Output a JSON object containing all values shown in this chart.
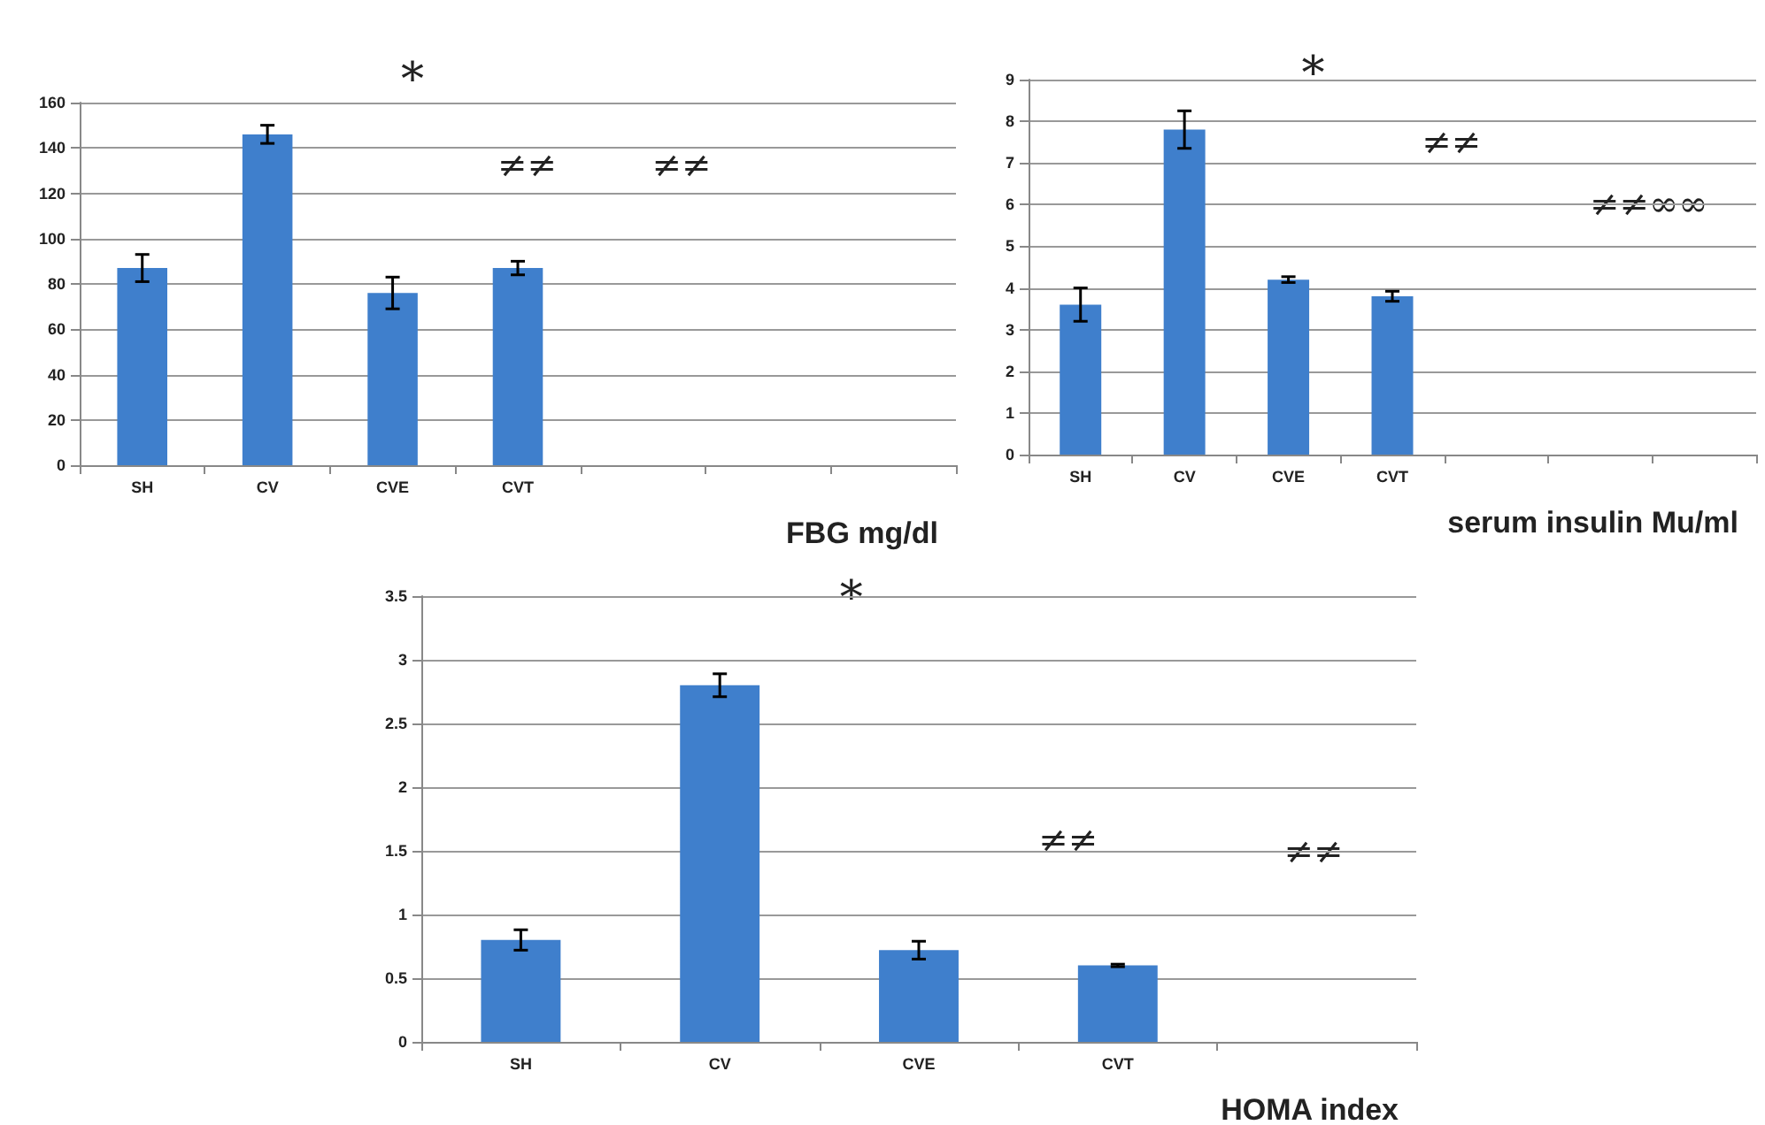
{
  "chart_data": [
    {
      "type": "bar",
      "xlabel": "FBG mg/dl",
      "categories": [
        "SH",
        "CV",
        "CVE",
        "CVT",
        null,
        null,
        null
      ],
      "series": [
        {
          "color": "#3f7fcc",
          "values": [
            87,
            146,
            76,
            87,
            null,
            null,
            null
          ],
          "errors": [
            6,
            4,
            7,
            3,
            null,
            null,
            null
          ]
        }
      ],
      "ylim": [
        0,
        160
      ],
      "yticks": [
        0,
        20,
        40,
        60,
        80,
        100,
        120,
        140,
        160
      ],
      "grid": "y",
      "annotations": [
        "*",
        "≠≠",
        "≠≠"
      ]
    },
    {
      "type": "bar",
      "xlabel": "serum insulin Mu/ml",
      "categories": [
        "SH",
        "CV",
        "CVE",
        "CVT",
        null,
        null,
        null
      ],
      "series": [
        {
          "color": "#3f7fcc",
          "values": [
            3.6,
            7.8,
            4.2,
            3.8,
            null,
            null,
            null
          ],
          "errors": [
            0.4,
            0.45,
            0.07,
            0.12,
            null,
            null,
            null
          ]
        }
      ],
      "ylim": [
        0,
        9
      ],
      "yticks": [
        0,
        1,
        2,
        3,
        4,
        5,
        6,
        7,
        8,
        9
      ],
      "grid": "y",
      "annotations": [
        "*",
        "≠≠",
        "≠≠∞∞"
      ]
    },
    {
      "type": "bar",
      "xlabel": "HOMA index",
      "categories": [
        "SH",
        "CV",
        "CVE",
        "CVT",
        null
      ],
      "series": [
        {
          "color": "#3f7fcc",
          "values": [
            0.8,
            2.8,
            0.72,
            0.6,
            null
          ],
          "errors": [
            0.08,
            0.09,
            0.07,
            0.01,
            null
          ]
        }
      ],
      "ylim": [
        0,
        3.5
      ],
      "yticks": [
        0,
        0.5,
        1,
        1.5,
        2,
        2.5,
        3,
        3.5
      ],
      "grid": "y",
      "annotations": [
        "*",
        "≠≠",
        "≠≠"
      ]
    }
  ]
}
